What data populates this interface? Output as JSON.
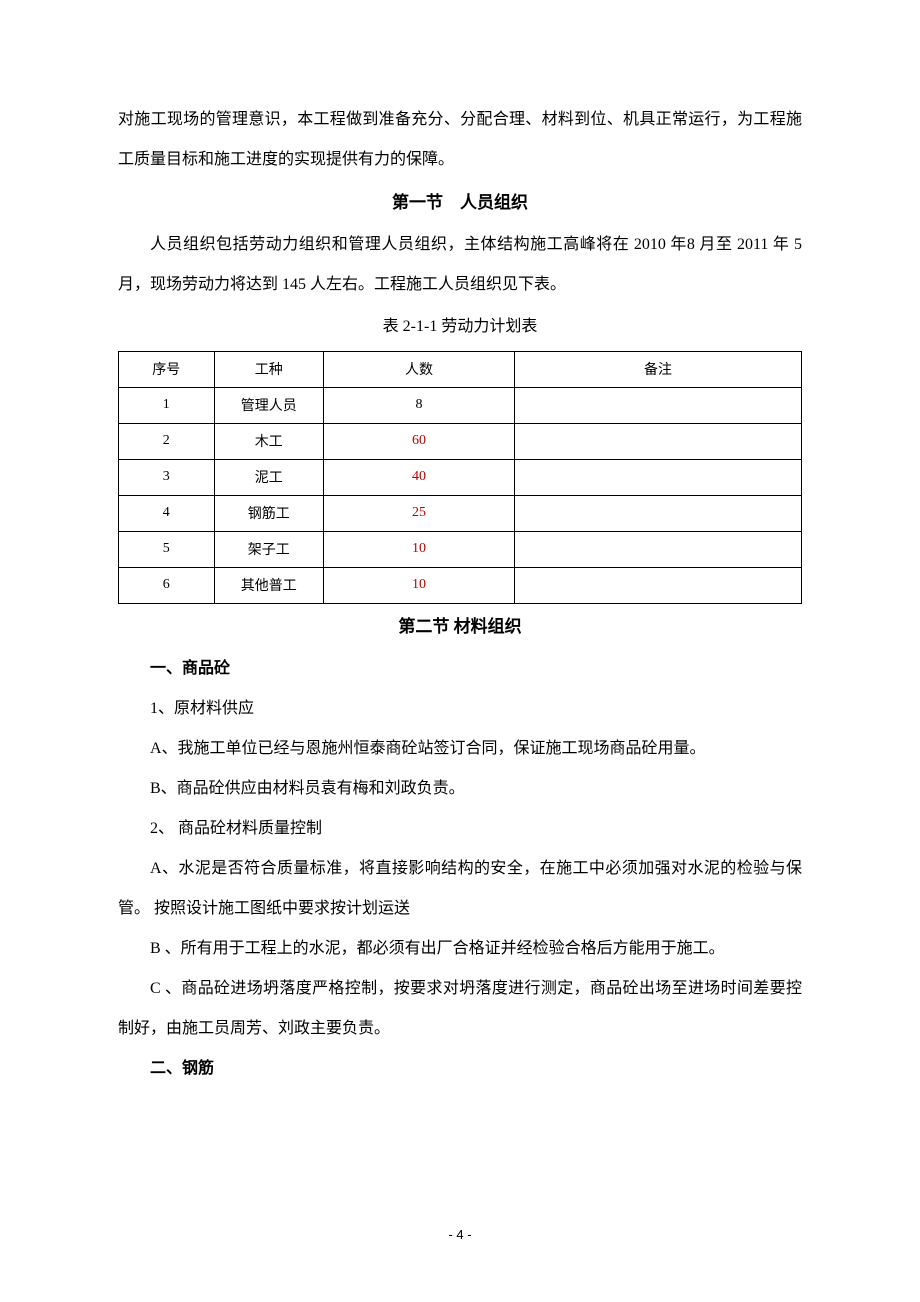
{
  "para1": "对施工现场的管理意识，本工程做到准备充分、分配合理、材料到位、机具正常运行，为工程施工质量目标和施工进度的实现提供有力的保障。",
  "section1_title": "第一节 人员组织",
  "para2": "人员组织包括劳动力组织和管理人员组织，主体结构施工高峰将在 2010 年8 月至 2011 年 5 月，现场劳动力将达到 145 人左右。工程施工人员组织见下表。",
  "table_caption": "表 2-1-1 劳动力计划表",
  "table": {
    "headers": [
      "序号",
      "工种",
      "人数",
      "备注"
    ],
    "rows": [
      {
        "seq": "1",
        "type": "管理人员",
        "count": "8",
        "red": false,
        "note": ""
      },
      {
        "seq": "2",
        "type": "木工",
        "count": "60",
        "red": true,
        "note": ""
      },
      {
        "seq": "3",
        "type": "泥工",
        "count": "40",
        "red": true,
        "note": ""
      },
      {
        "seq": "4",
        "type": "钢筋工",
        "count": "25",
        "red": true,
        "note": ""
      },
      {
        "seq": "5",
        "type": "架子工",
        "count": "10",
        "red": true,
        "note": ""
      },
      {
        "seq": "6",
        "type": "其他普工",
        "count": "10",
        "red": true,
        "note": ""
      }
    ]
  },
  "section2_title": "第二节  材料组织",
  "sub1": "一、商品砼",
  "p1_1": "1、原材料供应",
  "p1_A": "A、我施工单位已经与恩施州恒泰商砼站签订合同，保证施工现场商品砼用量。",
  "p1_B": "B、商品砼供应由材料员袁有梅和刘政负责。",
  "p1_2": "2、 商品砼材料质量控制",
  "p2_A": "A、水泥是否符合质量标准，将直接影响结构的安全，在施工中必须加强对水泥的检验与保管。 按照设计施工图纸中要求按计划运送",
  "p2_B": "B 、所有用于工程上的水泥，都必须有出厂合格证并经检验合格后方能用于施工。",
  "p2_C": "C 、商品砼进场坍落度严格控制，按要求对坍落度进行测定，商品砼出场至进场时间差要控制好，由施工员周芳、刘政主要负责。",
  "sub2": "二、钢筋",
  "page_number": "- 4 -"
}
